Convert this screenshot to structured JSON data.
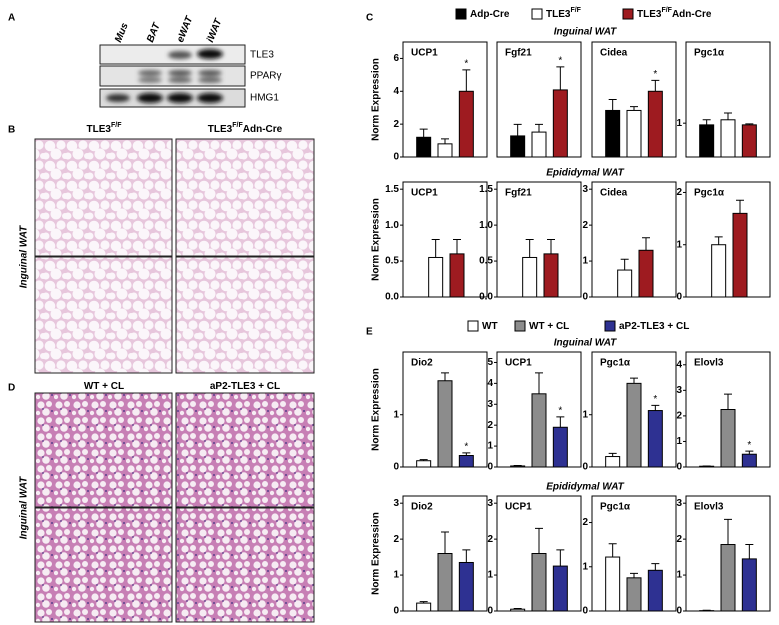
{
  "panel_labels": [
    "A",
    "B",
    "C",
    "D",
    "E"
  ],
  "blot": {
    "lanes": [
      "Mus",
      "BAT",
      "eWAT",
      "iWAT"
    ],
    "bands": [
      "TLE3",
      "PPARγ",
      "HMG1"
    ]
  },
  "histology_b": {
    "columns": [
      [
        "TLE3",
        "F/F"
      ],
      [
        "TLE3",
        "F/F",
        "Adn-Cre"
      ]
    ],
    "row_label": "Inguinal WAT"
  },
  "histology_d": {
    "columns": [
      [
        "WT + CL"
      ],
      [
        "aP2-TLE3 + CL"
      ]
    ],
    "row_label": "Inguinal WAT"
  },
  "chart_data": [
    {
      "type": "bar",
      "categories": [
        "UCP1",
        "Fgf21",
        "Cidea",
        "Pgc1α",
        "UCP1",
        "Fgf21",
        "Cidea",
        "Pgc1α"
      ],
      "sections": [
        {
          "title": "Inguinal WAT",
          "y_label": "Norm Expression"
        },
        {
          "title": "Epididymal WAT",
          "y_label": "Norm Expression"
        }
      ],
      "subplots": [
        {
          "ylim": [
            0,
            7
          ],
          "yticks": [
            0,
            2,
            4,
            6
          ]
        },
        {
          "ylim": [
            0,
            3
          ],
          "yticks": []
        },
        {
          "ylim": [
            0,
            2.1
          ],
          "yticks": []
        },
        {
          "ylim": [
            0,
            3.4
          ],
          "yticks": [
            1
          ]
        },
        {
          "ylim": [
            0,
            1.6
          ],
          "yticks": [
            {
              "value": 0,
              "label": "0.0"
            },
            {
              "value": 0.5,
              "label": "0.5"
            },
            {
              "value": 1,
              "label": "1.0"
            },
            {
              "value": 1.5,
              "label": "1.5"
            }
          ]
        },
        {
          "ylim": [
            0,
            1.6
          ],
          "yticks": [
            {
              "value": 0,
              "label": "0.0"
            },
            {
              "value": 0.5,
              "label": "0.5"
            },
            {
              "value": 1,
              "label": "1.0"
            },
            {
              "value": 1.5,
              "label": "1.5"
            }
          ]
        },
        {
          "ylim": [
            0,
            3.2
          ],
          "yticks": [
            0,
            1,
            2,
            3
          ]
        },
        {
          "ylim": [
            0,
            2.2
          ],
          "yticks": [
            0,
            1,
            2
          ]
        }
      ],
      "series": [
        {
          "name": [
            "Adp-Cre"
          ],
          "color": "#000000",
          "values": [
            1.2,
            0.55,
            0.85,
            0.95,
            null,
            null,
            null,
            null
          ],
          "errors": [
            0.5,
            0.3,
            0.2,
            0.15,
            null,
            null,
            null,
            null
          ],
          "annotations": [
            null,
            null,
            null,
            null,
            null,
            null,
            null,
            null
          ]
        },
        {
          "name": [
            "TLE3",
            "F/F"
          ],
          "color": "#ffffff",
          "values": [
            0.8,
            0.65,
            0.85,
            1.1,
            0.55,
            0.55,
            0.75,
            1.0
          ],
          "errors": [
            0.3,
            0.2,
            0.07,
            0.2,
            0.25,
            0.25,
            0.3,
            0.15
          ],
          "annotations": [
            null,
            null,
            null,
            null,
            null,
            null,
            null,
            null
          ]
        },
        {
          "name": [
            "TLE3",
            "F/F",
            "Adn-Cre"
          ],
          "color": "#9e1b20",
          "values": [
            4.0,
            1.75,
            1.2,
            0.95,
            0.6,
            0.6,
            1.3,
            1.6
          ],
          "errors": [
            1.3,
            0.6,
            0.2,
            0.03,
            0.2,
            0.2,
            0.35,
            0.25
          ],
          "annotations": [
            "*",
            "*",
            "*",
            null,
            null,
            null,
            null,
            null
          ]
        }
      ]
    },
    {
      "type": "bar",
      "categories": [
        "Dio2",
        "UCP1",
        "Pgc1α",
        "Elovl3",
        "Dio2",
        "UCP1",
        "Pgc1α",
        "Elovl3"
      ],
      "sections": [
        {
          "title": "Inguinal WAT",
          "y_label": "Norm Expression"
        },
        {
          "title": "Epididymal WAT",
          "y_label": "Norm Expression"
        }
      ],
      "subplots": [
        {
          "ylim": [
            0,
            2.2
          ],
          "yticks": [
            0,
            1
          ]
        },
        {
          "ylim": [
            0,
            5.5
          ],
          "yticks": [
            0,
            1,
            2,
            3,
            4,
            5
          ]
        },
        {
          "ylim": [
            0,
            2.2
          ],
          "yticks": [
            0,
            1
          ]
        },
        {
          "ylim": [
            0,
            4.5
          ],
          "yticks": [
            0,
            1,
            2,
            3,
            4
          ]
        },
        {
          "ylim": [
            0,
            3.2
          ],
          "yticks": [
            0,
            1,
            2,
            3
          ]
        },
        {
          "ylim": [
            0,
            3.2
          ],
          "yticks": [
            0,
            1,
            2,
            3
          ]
        },
        {
          "ylim": [
            0,
            2.6
          ],
          "yticks": [
            0,
            1,
            2
          ]
        },
        {
          "ylim": [
            0,
            3.2
          ],
          "yticks": [
            0,
            1,
            2,
            3
          ]
        }
      ],
      "series": [
        {
          "name": [
            "WT"
          ],
          "color": "#ffffff",
          "values": [
            0.12,
            0.05,
            0.2,
            0.03,
            0.22,
            0.05,
            1.22,
            0.01
          ],
          "errors": [
            0.02,
            0.02,
            0.06,
            0.01,
            0.04,
            0.02,
            0.3,
            0.01
          ],
          "annotations": [
            null,
            null,
            null,
            null,
            null,
            null,
            null,
            null
          ]
        },
        {
          "name": [
            "WT + CL"
          ],
          "color": "#8c8c8c",
          "values": [
            1.65,
            3.5,
            1.6,
            2.25,
            1.6,
            1.6,
            0.75,
            1.85
          ],
          "errors": [
            0.15,
            1.0,
            0.1,
            0.6,
            0.6,
            0.7,
            0.1,
            0.7
          ],
          "annotations": [
            null,
            null,
            null,
            null,
            null,
            null,
            null,
            null
          ]
        },
        {
          "name": [
            "aP2-TLE3 + CL"
          ],
          "color": "#2e3192",
          "values": [
            0.22,
            1.9,
            1.08,
            0.5,
            1.35,
            1.25,
            0.92,
            1.45
          ],
          "errors": [
            0.05,
            0.5,
            0.1,
            0.12,
            0.35,
            0.45,
            0.15,
            0.4
          ],
          "annotations": [
            "*",
            "*",
            "*",
            "*",
            null,
            null,
            null,
            null
          ]
        }
      ]
    }
  ]
}
